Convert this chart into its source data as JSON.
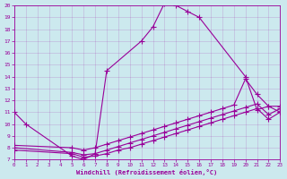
{
  "xlabel": "Windchill (Refroidissement éolien,°C)",
  "xlim": [
    0,
    23
  ],
  "ylim": [
    7,
    20
  ],
  "xticks": [
    0,
    1,
    2,
    3,
    4,
    5,
    6,
    7,
    8,
    9,
    10,
    11,
    12,
    13,
    14,
    15,
    16,
    17,
    18,
    19,
    20,
    21,
    22,
    23
  ],
  "yticks": [
    7,
    8,
    9,
    10,
    11,
    12,
    13,
    14,
    15,
    16,
    17,
    18,
    19,
    20
  ],
  "bg_color": "#cce9ee",
  "line_color": "#990099",
  "lines": [
    [
      0,
      1,
      2,
      3,
      4,
      5,
      6,
      7,
      8,
      9,
      10,
      11,
      12,
      13,
      14,
      15,
      16,
      17,
      18,
      19,
      20,
      21,
      22,
      23
    ],
    [
      11,
      10,
      null,
      null,
      null,
      7.3,
      7.0,
      7.5,
      14.5,
      null,
      null,
      17.0,
      18.2,
      20.2,
      20.0,
      19.5,
      19.0,
      null,
      null,
      null,
      null,
      null,
      null,
      null
    ],
    [
      null,
      null,
      null,
      null,
      null,
      null,
      null,
      null,
      10.0,
      null,
      null,
      null,
      null,
      null,
      null,
      null,
      null,
      16.5,
      null,
      null,
      14.0,
      11.2,
      11.5,
      11.0
    ],
    [
      0,
      1,
      2,
      3,
      4,
      5,
      6,
      7,
      8,
      9,
      10,
      11,
      12,
      13,
      14,
      15,
      16,
      17,
      18,
      19,
      20,
      21,
      22,
      23
    ],
    [
      7.8,
      null,
      null,
      null,
      null,
      7.5,
      7.2,
      7.3,
      7.5,
      7.8,
      8.0,
      8.3,
      8.6,
      8.9,
      9.2,
      9.5,
      9.8,
      10.1,
      10.4,
      10.7,
      11.0,
      11.3,
      10.4,
      11.0
    ],
    [
      0,
      1,
      2,
      3,
      4,
      5,
      6,
      7,
      8,
      9,
      10,
      11,
      12,
      13,
      14,
      15,
      16,
      17,
      18,
      19,
      20,
      21,
      22,
      23
    ],
    [
      8.0,
      null,
      null,
      null,
      null,
      7.6,
      7.4,
      7.5,
      7.8,
      8.1,
      8.4,
      8.7,
      9.0,
      9.3,
      9.6,
      9.9,
      10.2,
      10.5,
      10.8,
      11.1,
      11.4,
      11.7,
      10.8,
      11.3
    ],
    [
      0,
      1,
      2,
      3,
      4,
      5,
      6,
      7,
      8,
      9,
      10,
      11,
      12,
      13,
      14,
      15,
      16,
      17,
      18,
      19,
      20,
      21,
      22,
      23
    ],
    [
      8.2,
      null,
      null,
      null,
      null,
      8.0,
      7.8,
      8.0,
      8.3,
      8.6,
      8.9,
      9.2,
      9.5,
      9.8,
      10.1,
      10.4,
      10.7,
      11.0,
      11.3,
      11.6,
      13.8,
      12.5,
      11.5,
      11.5
    ]
  ],
  "line1_x": [
    0,
    1,
    5,
    6,
    7,
    8,
    11,
    12,
    13,
    14,
    15,
    16,
    20,
    21,
    22,
    23
  ],
  "line1_y": [
    11.0,
    10.0,
    7.3,
    7.0,
    7.5,
    14.5,
    17.0,
    18.2,
    20.2,
    20.0,
    19.5,
    19.0,
    14.0,
    11.2,
    11.5,
    11.0
  ],
  "line2_x": [
    0,
    5,
    6,
    7,
    8,
    9,
    10,
    11,
    12,
    13,
    14,
    15,
    16,
    17,
    18,
    19,
    20,
    21,
    22,
    23
  ],
  "line2_y": [
    7.8,
    7.5,
    7.2,
    7.3,
    7.5,
    7.8,
    8.0,
    8.3,
    8.6,
    8.9,
    9.2,
    9.5,
    9.8,
    10.1,
    10.4,
    10.7,
    11.0,
    11.3,
    10.4,
    11.0
  ],
  "line3_x": [
    0,
    5,
    6,
    7,
    8,
    9,
    10,
    11,
    12,
    13,
    14,
    15,
    16,
    17,
    18,
    19,
    20,
    21,
    22,
    23
  ],
  "line3_y": [
    8.0,
    7.6,
    7.4,
    7.5,
    7.8,
    8.1,
    8.4,
    8.7,
    9.0,
    9.3,
    9.6,
    9.9,
    10.2,
    10.5,
    10.8,
    11.1,
    11.4,
    11.7,
    10.8,
    11.3
  ],
  "line4_x": [
    0,
    5,
    6,
    7,
    8,
    9,
    10,
    11,
    12,
    13,
    14,
    15,
    16,
    17,
    18,
    19,
    20,
    21,
    22,
    23
  ],
  "line4_y": [
    8.2,
    8.0,
    7.8,
    8.0,
    8.3,
    8.6,
    8.9,
    9.2,
    9.5,
    9.8,
    10.1,
    10.4,
    10.7,
    11.0,
    11.3,
    11.6,
    13.8,
    12.5,
    11.5,
    11.5
  ]
}
